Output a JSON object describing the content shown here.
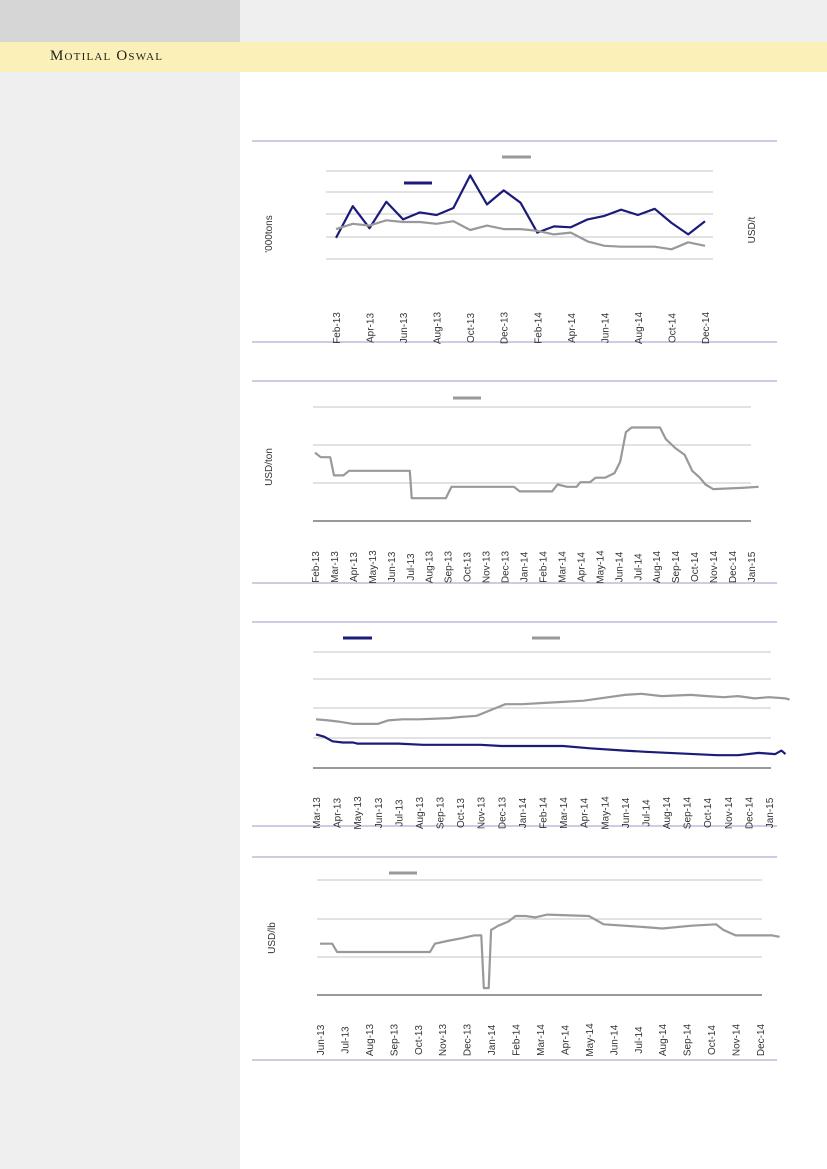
{
  "header": {
    "brand": "Motilal Oswal"
  },
  "colors": {
    "navy": "#1b1b7a",
    "grey": "#999999",
    "rule": "#9a9ac8"
  },
  "chart_data": [
    {
      "type": "line",
      "ylabel_left": "'000tons",
      "ylabel_right": "USD/t",
      "x_labels": [
        "Feb-13",
        "Apr-13",
        "Jun-13",
        "Aug-13",
        "Oct-13",
        "Dec-13",
        "Feb-14",
        "Apr-14",
        "Jun-14",
        "Aug-14",
        "Oct-14",
        "Dec-14"
      ],
      "series": [
        {
          "color": "#1b1b7a",
          "values": [
            4,
            40,
            15,
            45,
            25,
            33,
            30,
            38,
            75,
            42,
            58,
            44,
            10,
            17,
            16,
            25,
            29,
            36,
            30,
            37,
            21,
            8,
            23
          ]
        },
        {
          "color": "#999999",
          "values": [
            14,
            20,
            18,
            24,
            22,
            22,
            20,
            23,
            13,
            18,
            14,
            14,
            12,
            8,
            10,
            0,
            -5,
            -6,
            -6,
            -6,
            -9,
            -1,
            -5
          ]
        }
      ],
      "ylim": [
        -20,
        80
      ],
      "grid": true
    },
    {
      "type": "line",
      "ylabel": "USD/ton",
      "x_labels": [
        "Feb-13",
        "Mar-13",
        "Apr-13",
        "May-13",
        "Jun-13",
        "Jul-13",
        "Aug-13",
        "Sep-13",
        "Oct-13",
        "Nov-13",
        "Dec-13",
        "Jan-14",
        "Feb-14",
        "Mar-14",
        "Apr-14",
        "May-14",
        "Jun-14",
        "Jul-14",
        "Aug-14",
        "Sep-14",
        "Oct-14",
        "Nov-14",
        "Dec-14",
        "Jan-15"
      ],
      "series": [
        {
          "color": "#999999",
          "values": [
            [
              0,
              60
            ],
            [
              0.3,
              56
            ],
            [
              0.8,
              56
            ],
            [
              1,
              40
            ],
            [
              1.5,
              40
            ],
            [
              1.8,
              44
            ],
            [
              5,
              44
            ],
            [
              5.1,
              20
            ],
            [
              6.9,
              20
            ],
            [
              7.2,
              30
            ],
            [
              10.5,
              30
            ],
            [
              10.8,
              26
            ],
            [
              12.5,
              26
            ],
            [
              12.8,
              32
            ],
            [
              13.3,
              30
            ],
            [
              13.8,
              30
            ],
            [
              14,
              34
            ],
            [
              14.5,
              34
            ],
            [
              14.8,
              38
            ],
            [
              15.3,
              38
            ],
            [
              15.8,
              42
            ],
            [
              16.1,
              52
            ],
            [
              16.4,
              78
            ],
            [
              16.7,
              82
            ],
            [
              18.2,
              82
            ],
            [
              18.5,
              72
            ],
            [
              19,
              64
            ],
            [
              19.5,
              58
            ],
            [
              19.9,
              44
            ],
            [
              20.3,
              38
            ],
            [
              20.6,
              32
            ],
            [
              21,
              28
            ],
            [
              22.5,
              29
            ],
            [
              23.4,
              30
            ]
          ]
        }
      ],
      "ylim": [
        0,
        100
      ],
      "grid": true
    },
    {
      "type": "line",
      "x_labels": [
        "Mar-13",
        "Apr-13",
        "May-13",
        "Jun-13",
        "Jul-13",
        "Aug-13",
        "Sep-13",
        "Oct-13",
        "Nov-13",
        "Dec-13",
        "Jan-14",
        "Feb-14",
        "Mar-14",
        "Apr-14",
        "May-14",
        "Jun-14",
        "Jul-14",
        "Aug-14",
        "Sep-14",
        "Oct-14",
        "Nov-14",
        "Dec-14",
        "Jan-15"
      ],
      "series": [
        {
          "color": "#1b1b7a",
          "values": [
            [
              0,
              19
            ],
            [
              0.4,
              17
            ],
            [
              0.8,
              13
            ],
            [
              1.3,
              12
            ],
            [
              1.8,
              12
            ],
            [
              2,
              11
            ],
            [
              4,
              11
            ],
            [
              5.2,
              10
            ],
            [
              8,
              10
            ],
            [
              9,
              9
            ],
            [
              12,
              9
            ],
            [
              13.3,
              7
            ],
            [
              15,
              5
            ],
            [
              16,
              4
            ],
            [
              19.5,
              1
            ],
            [
              20.5,
              1
            ],
            [
              21.5,
              3
            ],
            [
              22.3,
              2
            ],
            [
              22.6,
              5
            ],
            [
              22.8,
              2
            ]
          ]
        },
        {
          "color": "#999999",
          "values": [
            [
              0,
              32
            ],
            [
              0.6,
              31
            ],
            [
              1.1,
              30
            ],
            [
              1.8,
              28
            ],
            [
              3,
              28
            ],
            [
              3.5,
              31
            ],
            [
              4.2,
              32
            ],
            [
              5,
              32
            ],
            [
              6.5,
              33
            ],
            [
              7,
              34
            ],
            [
              7.8,
              35
            ],
            [
              8.5,
              40
            ],
            [
              9.2,
              45
            ],
            [
              10,
              45
            ],
            [
              11,
              46
            ],
            [
              12,
              47
            ],
            [
              13,
              48
            ],
            [
              14.2,
              51
            ],
            [
              15,
              53
            ],
            [
              15.8,
              54
            ],
            [
              16.8,
              52
            ],
            [
              18.2,
              53
            ],
            [
              19,
              52
            ],
            [
              19.8,
              51
            ],
            [
              20.5,
              52
            ],
            [
              21.3,
              50
            ],
            [
              22,
              51
            ],
            [
              22.8,
              50
            ],
            [
              23,
              49
            ]
          ]
        }
      ],
      "ylim": [
        -10,
        90
      ],
      "grid": true
    },
    {
      "type": "line",
      "ylabel": "USD/lb",
      "x_labels": [
        "Jun-13",
        "Jul-13",
        "Aug-13",
        "Sep-13",
        "Oct-13",
        "Nov-13",
        "Dec-13",
        "Jan-14",
        "Feb-14",
        "Mar-14",
        "Apr-14",
        "May-14",
        "Jun-14",
        "Jul-14",
        "Aug-14",
        "Sep-14",
        "Oct-14",
        "Nov-14",
        "Dec-14"
      ],
      "series": [
        {
          "color": "#999999",
          "values": [
            [
              0,
              32
            ],
            [
              0.5,
              32
            ],
            [
              0.7,
              26
            ],
            [
              4.5,
              26
            ],
            [
              4.7,
              32
            ],
            [
              5.2,
              34
            ],
            [
              5.8,
              36
            ],
            [
              6.3,
              38
            ],
            [
              6.6,
              38
            ],
            [
              6.7,
              0
            ],
            [
              6.9,
              0
            ],
            [
              7,
              42
            ],
            [
              7.3,
              45
            ],
            [
              7.7,
              48
            ],
            [
              8,
              52
            ],
            [
              8.4,
              52
            ],
            [
              8.8,
              51
            ],
            [
              9.3,
              53
            ],
            [
              11,
              52
            ],
            [
              11.6,
              46
            ],
            [
              13.3,
              44
            ],
            [
              14,
              43
            ],
            [
              15.2,
              45
            ],
            [
              16.2,
              46
            ],
            [
              16.5,
              42
            ],
            [
              17,
              38
            ],
            [
              18.5,
              38
            ],
            [
              18.8,
              37
            ]
          ]
        }
      ],
      "ylim": [
        -5,
        78
      ],
      "grid": true
    }
  ]
}
